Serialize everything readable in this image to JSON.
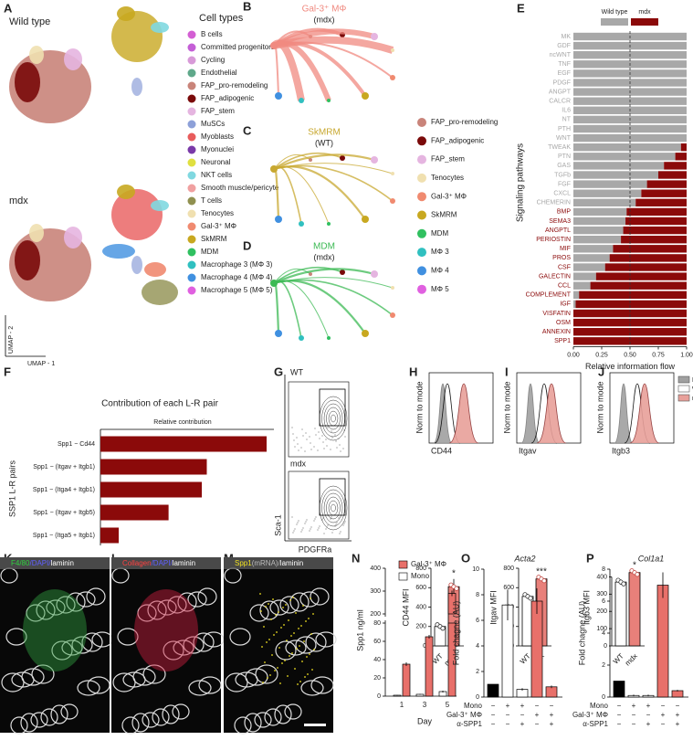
{
  "panel_labels": [
    "A",
    "B",
    "C",
    "D",
    "E",
    "F",
    "G",
    "H",
    "I",
    "J",
    "K",
    "L",
    "M",
    "N",
    "O",
    "P"
  ],
  "umap": {
    "labels": [
      "Wild type",
      "mdx"
    ],
    "x_axis": "UMAP - 1",
    "y_axis": "UMAP - 2",
    "legend_title": "Cell types",
    "cell_types": [
      {
        "name": "B cells",
        "color": "#d35fd3"
      },
      {
        "name": "Committed progenitors",
        "color": "#c45fd6"
      },
      {
        "name": "Cycling",
        "color": "#d89ad8"
      },
      {
        "name": "Endothelial",
        "color": "#5fa88a"
      },
      {
        "name": "FAP_pro-remodeling",
        "color": "#c9847a"
      },
      {
        "name": "FAP_adipogenic",
        "color": "#7a0a0a"
      },
      {
        "name": "FAP_stem",
        "color": "#e5b5e0"
      },
      {
        "name": "MuSCs",
        "color": "#8da0d8"
      },
      {
        "name": "Myoblasts",
        "color": "#e85c5c"
      },
      {
        "name": "Myonuclei",
        "color": "#7a3aa8"
      },
      {
        "name": "Neuronal",
        "color": "#e0e040"
      },
      {
        "name": "NKT cells",
        "color": "#80d8e0"
      },
      {
        "name": "Smooth muscle/pericyte",
        "color": "#f0a0a0"
      },
      {
        "name": "T cells",
        "color": "#909050"
      },
      {
        "name": "Tenocytes",
        "color": "#f0e0b0"
      },
      {
        "name": "Gal-3⁺ MΦ",
        "color": "#f08a70"
      },
      {
        "name": "SkMRM",
        "color": "#c8a820"
      },
      {
        "name": "MDM",
        "color": "#30c060"
      },
      {
        "name": "Macrophage 3 (MΦ 3)",
        "color": "#30c0c0"
      },
      {
        "name": "Macrophage 4 (MΦ 4)",
        "color": "#4090e0"
      },
      {
        "name": "Macrophage 5 (MΦ 5)",
        "color": "#e060e0"
      }
    ]
  },
  "circle_plots": {
    "plots": [
      {
        "title": "Gal-3⁺ MΦ",
        "subtitle": "(mdx)",
        "color": "#f08a80"
      },
      {
        "title": "SkMRM",
        "subtitle": "(WT)",
        "color": "#c8a830"
      },
      {
        "title": "MDM",
        "subtitle": "(mdx)",
        "color": "#3cba54"
      }
    ],
    "legend": [
      {
        "name": "FAP_pro-remodeling",
        "color": "#c9847a"
      },
      {
        "name": "FAP_adipogenic",
        "color": "#7a0a0a"
      },
      {
        "name": "FAP_stem",
        "color": "#e5b5e0"
      },
      {
        "name": "Tenocytes",
        "color": "#f0e0b0"
      },
      {
        "name": "Gal-3⁺ MΦ",
        "color": "#f08a70"
      },
      {
        "name": "SkMRM",
        "color": "#c8a820"
      },
      {
        "name": "MDM",
        "color": "#30c060"
      },
      {
        "name": "MΦ 3",
        "color": "#30c0c0"
      },
      {
        "name": "MΦ 4",
        "color": "#4090e0"
      },
      {
        "name": "MΦ 5",
        "color": "#e060e0"
      }
    ]
  },
  "flow": {
    "labels": [
      "WT",
      "mdx"
    ],
    "x_axis": "PDGFRa",
    "y_axis": "Sca-1"
  },
  "images": [
    {
      "parts": [
        {
          "text": "F4/80",
          "color": "#30d040"
        },
        {
          "text": "/DAPI/",
          "color": "#6060ff"
        },
        {
          "text": "laminin",
          "color": "#ffffff"
        }
      ]
    },
    {
      "parts": [
        {
          "text": "Collagen",
          "color": "#ff4040"
        },
        {
          "text": "/DAPI/",
          "color": "#6060ff"
        },
        {
          "text": "laminin",
          "color": "#ffffff"
        }
      ]
    },
    {
      "parts": [
        {
          "text": "Spp1",
          "color": "#f0e020"
        },
        {
          "text": "(mRNA)/",
          "color": "#bbbbbb"
        },
        {
          "text": "laminin",
          "color": "#ffffff"
        }
      ]
    }
  ],
  "chart_data": [
    {
      "type": "stacked_hbar",
      "x_label": "Relative information flow",
      "y_label": "Signaling pathways",
      "categories": [
        "MK",
        "GDF",
        "ncWNT",
        "TNF",
        "EGF",
        "PDGF",
        "ANGPT",
        "CALCR",
        "IL6",
        "NT",
        "PTH",
        "WNT",
        "TWEAK",
        "PTN",
        "GAS",
        "TGFb",
        "FGF",
        "CXCL",
        "CHEMERIN",
        "BMP",
        "SEMA3",
        "ANGPTL",
        "PERIOSTIN",
        "MIF",
        "PROS",
        "CSF",
        "GALECTIN",
        "CCL",
        "COMPLEMENT",
        "IGF",
        "VISFATIN",
        "OSM",
        "ANNEXIN",
        "SPP1"
      ],
      "series": [
        {
          "name": "Wild type",
          "color": "#a8a8a8",
          "values": [
            1,
            1,
            1,
            1,
            1,
            1,
            1,
            1,
            1,
            1,
            1,
            1,
            0.95,
            0.9,
            0.8,
            0.75,
            0.65,
            0.6,
            0.55,
            0.47,
            0.46,
            0.44,
            0.42,
            0.35,
            0.32,
            0.28,
            0.2,
            0.15,
            0.05,
            0.02,
            0,
            0,
            0,
            0
          ]
        },
        {
          "name": "mdx",
          "color": "#8b0a0a",
          "values": [
            0,
            0,
            0,
            0,
            0,
            0,
            0,
            0,
            0,
            0,
            0,
            0,
            0.05,
            0.1,
            0.2,
            0.25,
            0.35,
            0.4,
            0.45,
            0.53,
            0.54,
            0.56,
            0.58,
            0.65,
            0.68,
            0.72,
            0.8,
            0.85,
            0.95,
            0.98,
            1,
            1,
            1,
            1
          ]
        }
      ],
      "xlim": [
        0,
        1
      ],
      "xticks": [
        {
          "value": 0,
          "label": "0.00"
        },
        {
          "value": 0.25,
          "label": "0.25"
        },
        {
          "value": 0.5,
          "label": "0.50"
        },
        {
          "value": 0.75,
          "label": "0.75"
        },
        {
          "value": 1,
          "label": "1.00"
        }
      ]
    },
    {
      "type": "hbar",
      "title": "Contribution of each L-R pair",
      "x_label": "Relative contribution",
      "y_label": "SSP1 L-R pairs",
      "categories": [
        "Spp1  − Cd44",
        "Spp1  − (Itgav + Itgb1)",
        "Spp1  − (Itga4 + Itgb1)",
        "Spp1  − (Itgav + Itgb5)",
        "Spp1  − (Itga5 + Itgb1)"
      ],
      "values": [
        1,
        0.64,
        0.61,
        0.41,
        0.11
      ],
      "xlim": [
        0,
        1
      ],
      "color": "#8b0a0a"
    },
    {
      "type": "bar",
      "hist_x_label": "CD44",
      "hist_y_label": "Norm to mode",
      "y_label": "CD44 MFI",
      "categories": [
        "WT",
        "mdx"
      ],
      "values": [
        200,
        610
      ],
      "errors": [
        15,
        80
      ],
      "colors": [
        "#ffffff",
        "#e8807a"
      ],
      "ylim": [
        0,
        800
      ],
      "yticks": [
        0,
        200,
        400,
        600,
        800
      ],
      "annotation": "*"
    },
    {
      "type": "bar",
      "hist_x_label": "Itgav",
      "hist_y_label": "Norm to mode",
      "y_label": "Itgav MFI",
      "categories": [
        "WT",
        "mdx"
      ],
      "values": [
        510,
        690
      ],
      "errors": [
        25,
        15
      ],
      "colors": [
        "#ffffff",
        "#e8807a"
      ],
      "ylim": [
        0,
        800
      ],
      "yticks": [
        0,
        200,
        400,
        600,
        800
      ],
      "annotation": "***"
    },
    {
      "type": "bar",
      "hist_x_label": "Itgb3",
      "hist_y_label": "Norm to mode",
      "y_label": "Itgb3 MFI",
      "categories": [
        "WT",
        "mdx"
      ],
      "values": [
        370,
        425
      ],
      "errors": [
        15,
        10
      ],
      "colors": [
        "#ffffff",
        "#e8807a"
      ],
      "ylim": [
        0,
        450
      ],
      "yticks": [
        0,
        100,
        200,
        300,
        400
      ],
      "annotation": "*",
      "legend": [
        {
          "name": "FMO",
          "color": "#a0a0a0"
        },
        {
          "name": "WT",
          "color": "#ffffff"
        },
        {
          "name": "mdx",
          "color": "#e8a09a"
        }
      ]
    },
    {
      "type": "grouped_bar",
      "y_label": "Spp1 ng/ml",
      "x_label": "Day",
      "categories": [
        "1",
        "3",
        "5"
      ],
      "series": [
        {
          "name": "Gal-3⁺ MΦ",
          "color": "#e8706a",
          "values": [
            35,
            65,
            290
          ],
          "errors": [
            2,
            2,
            12
          ]
        },
        {
          "name": "Mono",
          "color": "#ffffff",
          "values": [
            1,
            2,
            5
          ],
          "errors": [
            0.3,
            0.5,
            1
          ]
        }
      ],
      "ylim": [
        0,
        400
      ],
      "yticks": [
        0,
        20,
        40,
        60,
        80,
        200,
        300,
        400
      ],
      "axis_break": [
        80,
        200
      ]
    },
    {
      "type": "bar",
      "title": "Acta2",
      "y_label": "Fold chagne (AU)",
      "values": [
        1,
        7.2,
        0.6,
        7.5,
        0.8
      ],
      "errors": [
        0,
        1.2,
        0.1,
        1,
        0.1
      ],
      "colors": [
        "#000000",
        "#ffffff",
        "#ffffff",
        "#e8706a",
        "#e8706a"
      ],
      "ylim": [
        0,
        10
      ],
      "yticks": [
        0,
        2,
        4,
        6,
        8,
        10
      ],
      "conditions": [
        {
          "name": "Mono",
          "signs": [
            "−",
            "+",
            "+",
            "−",
            "−"
          ]
        },
        {
          "name": "Gal-3⁺ MΦ",
          "signs": [
            "−",
            "−",
            "−",
            "+",
            "+"
          ]
        },
        {
          "name": "α-SPP1",
          "signs": [
            "−",
            "−",
            "+",
            "−",
            "+"
          ]
        }
      ]
    },
    {
      "type": "bar",
      "title": "Col1a1",
      "y_label": "Fold chagne (AU)",
      "values": [
        1,
        0.1,
        0.1,
        7,
        0.4
      ],
      "errors": [
        0,
        0.05,
        0.05,
        0.8,
        0.05
      ],
      "colors": [
        "#000000",
        "#ffffff",
        "#ffffff",
        "#e8706a",
        "#e8706a"
      ],
      "ylim": [
        0,
        8
      ],
      "yticks": [
        0,
        2,
        4,
        6,
        8
      ],
      "conditions": [
        {
          "name": "Mono",
          "signs": [
            "−",
            "+",
            "+",
            "−",
            "−"
          ]
        },
        {
          "name": "Gal-3⁺ MΦ",
          "signs": [
            "−",
            "−",
            "−",
            "+",
            "+"
          ]
        },
        {
          "name": "α-SPP1",
          "signs": [
            "−",
            "−",
            "+",
            "−",
            "+"
          ]
        }
      ]
    }
  ]
}
